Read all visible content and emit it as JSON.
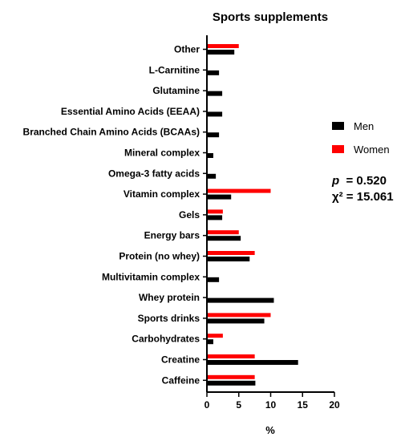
{
  "chart_data": {
    "type": "bar",
    "orientation": "horizontal",
    "title": "Sports supplements",
    "xlabel": "%",
    "ylabel": "",
    "xlim": [
      0,
      20
    ],
    "xticks": [
      "0",
      "5",
      "10",
      "15",
      "20"
    ],
    "grid": false,
    "legend_position": "right",
    "categories": [
      "Other",
      "L-Carnitine",
      "Glutamine",
      "Essential Amino Acids (EEAA)",
      "Branched Chain Amino Acids (BCAAs)",
      "Mineral complex",
      "Omega-3 fatty acids",
      "Vitamin complex",
      "Gels",
      "Energy bars",
      "Protein (no whey)",
      "Multivitamin complex",
      "Whey protein",
      "Sports drinks",
      "Carbohydrates",
      "Creatine",
      "Caffeine"
    ],
    "series": [
      {
        "name": "Women",
        "color": "#ff0000",
        "values": [
          5.0,
          0,
          0,
          0,
          0,
          0,
          0,
          10.0,
          2.5,
          5.0,
          7.5,
          0,
          0,
          10.0,
          2.5,
          7.5,
          7.5
        ]
      },
      {
        "name": "Men",
        "color": "#000000",
        "values": [
          4.3,
          1.9,
          2.4,
          2.4,
          1.9,
          1.0,
          1.4,
          3.8,
          2.4,
          5.3,
          6.7,
          1.9,
          10.5,
          9.0,
          1.0,
          14.3,
          7.6
        ]
      }
    ],
    "annotations": [
      "p = 0.520",
      "χ² = 15.061"
    ]
  }
}
